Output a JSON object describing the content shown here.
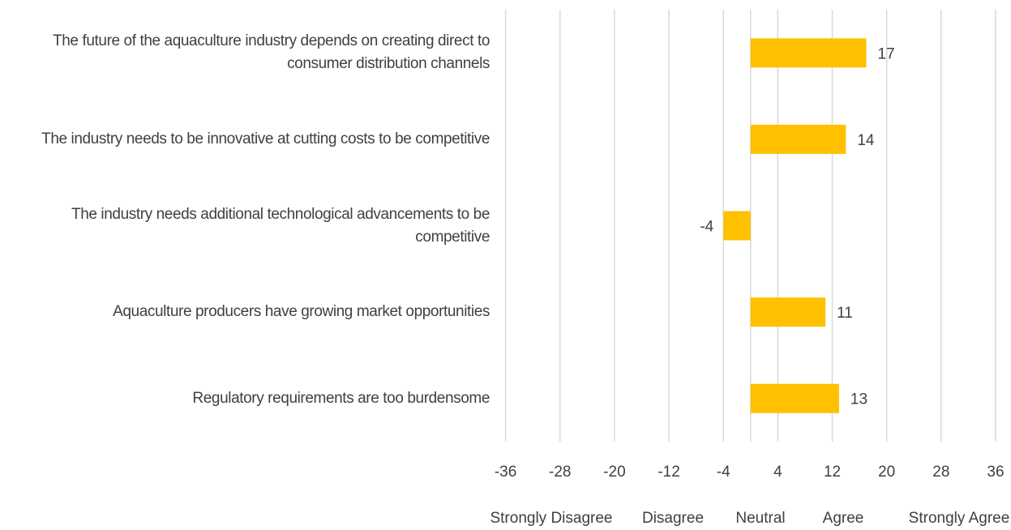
{
  "chart_data": {
    "type": "bar",
    "orientation": "horizontal",
    "categories": [
      "The future of the aquaculture industry depends on creating direct to consumer distribution channels",
      "The industry needs to be innovative at cutting costs to be competitive",
      "The industry needs additional technological advancements to be competitive",
      "Aquaculture producers have growing market opportunities",
      "Regulatory requirements are too burdensome"
    ],
    "values": [
      17,
      14,
      -4,
      11,
      13
    ],
    "color": "#ffc000",
    "xlim": [
      -36,
      36
    ],
    "xticks": [
      -36,
      -28,
      -20,
      -12,
      -4,
      4,
      12,
      20,
      28,
      36
    ],
    "grid": true,
    "scale_labels": [
      "Strongly Disagree",
      "Disagree",
      "Neutral",
      "Agree",
      "Strongly Agree"
    ]
  }
}
